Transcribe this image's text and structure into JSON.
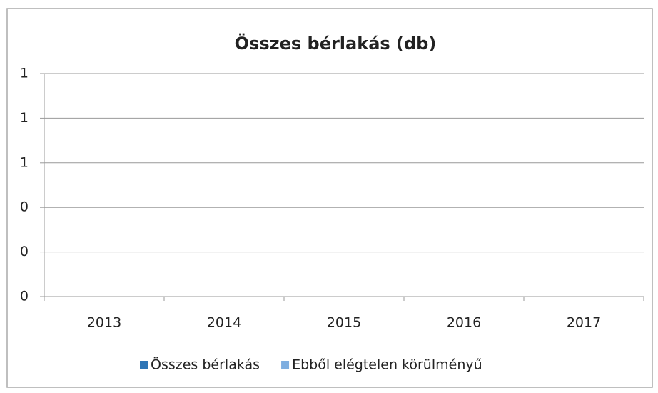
{
  "chart_data": {
    "type": "bar",
    "title": "Összes bérlakás (db)",
    "categories": [
      "2013",
      "2014",
      "2015",
      "2016",
      "2017"
    ],
    "series": [
      {
        "name": "Összes bérlakás",
        "color": "#2e75b6",
        "values": [
          0,
          0,
          0,
          0,
          0
        ]
      },
      {
        "name": "Ebből elégtelen körülményű",
        "color": "#7eaee0",
        "values": [
          0,
          0,
          0,
          0,
          0
        ]
      }
    ],
    "ylim": [
      0,
      1
    ],
    "yticks": [
      0,
      {
        "value": 0.2,
        "label": "0"
      },
      {
        "value": 0.4,
        "label": "0"
      },
      {
        "value": 0.6,
        "label": "1"
      },
      {
        "value": 0.8,
        "label": "1"
      },
      1
    ],
    "grid": true,
    "legend": "bottom"
  }
}
